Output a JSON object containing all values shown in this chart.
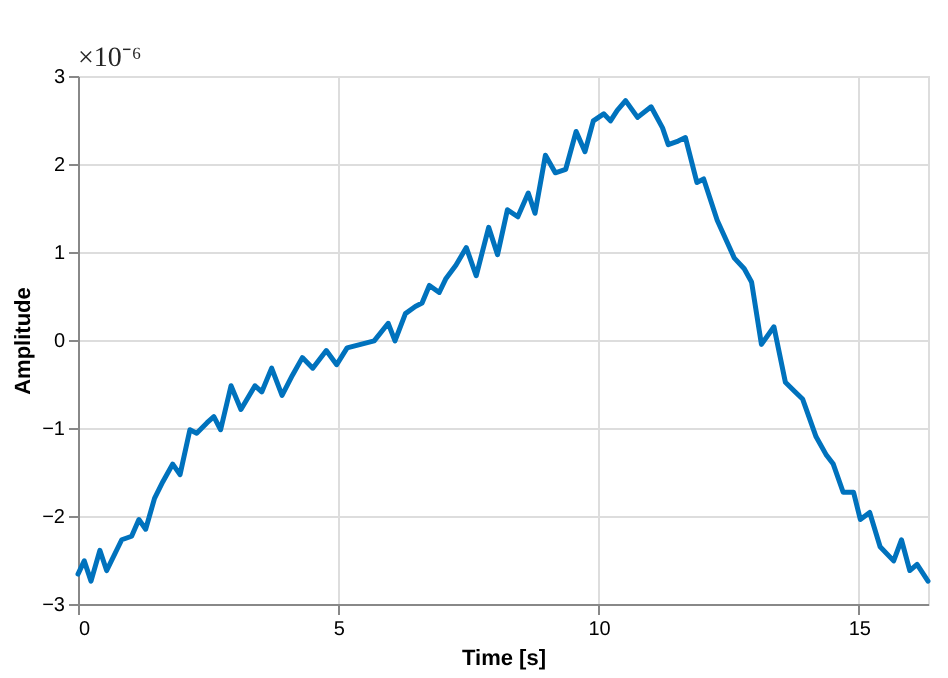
{
  "chart_data": {
    "type": "line",
    "xlabel": "Time [s]",
    "ylabel": "Amplitude",
    "annotations": [
      "×10⁻⁶"
    ],
    "xlim": [
      0,
      16.33
    ],
    "xticks": [
      0,
      5,
      10,
      15
    ],
    "ylim": [
      -3,
      3
    ],
    "yticks": [
      -3,
      -2,
      -1,
      0,
      1,
      2,
      3
    ],
    "grid": true,
    "line_style": "solid",
    "marker": "none",
    "series": [
      {
        "color": "#0072bd",
        "x": [
          0,
          0.12,
          0.25,
          0.42,
          0.55,
          0.84,
          1.03,
          1.17,
          1.3,
          1.47,
          1.63,
          1.82,
          1.96,
          2.15,
          2.28,
          2.48,
          2.61,
          2.74,
          2.94,
          3.13,
          3.4,
          3.53,
          3.72,
          3.92,
          4.12,
          4.31,
          4.51,
          4.77,
          4.97,
          5.17,
          5.43,
          5.69,
          5.96,
          6.09,
          6.29,
          6.48,
          6.61,
          6.75,
          6.94,
          7.07,
          7.26,
          7.46,
          7.65,
          7.89,
          8.06,
          8.25,
          8.45,
          8.65,
          8.78,
          8.98,
          9.17,
          9.37,
          9.57,
          9.74,
          9.9,
          10.1,
          10.23,
          10.36,
          10.52,
          10.75,
          11.01,
          11.23,
          11.34,
          11.53,
          11.67,
          11.89,
          12.02,
          12.28,
          12.61,
          12.8,
          12.94,
          13.13,
          13.37,
          13.59,
          13.78,
          13.92,
          14.18,
          14.37,
          14.51,
          14.7,
          14.9,
          15.03,
          15.21,
          15.41,
          15.67,
          15.82,
          15.98,
          16.12,
          16.33
        ],
        "values": [
          -2.66,
          -2.51,
          -2.74,
          -2.39,
          -2.62,
          -2.27,
          -2.23,
          -2.04,
          -2.15,
          -1.8,
          -1.61,
          -1.41,
          -1.53,
          -1.02,
          -1.06,
          -0.94,
          -0.87,
          -1.02,
          -0.52,
          -0.79,
          -0.52,
          -0.59,
          -0.32,
          -0.63,
          -0.4,
          -0.2,
          -0.32,
          -0.12,
          -0.28,
          -0.09,
          -0.05,
          -0.01,
          0.19,
          -0.01,
          0.3,
          0.38,
          0.42,
          0.62,
          0.54,
          0.7,
          0.85,
          1.05,
          0.73,
          1.28,
          0.97,
          1.48,
          1.4,
          1.67,
          1.44,
          2.1,
          1.9,
          1.94,
          2.37,
          2.14,
          2.49,
          2.57,
          2.49,
          2.61,
          2.72,
          2.53,
          2.65,
          2.41,
          2.22,
          2.26,
          2.3,
          1.79,
          1.83,
          1.36,
          0.93,
          0.81,
          0.66,
          -0.05,
          0.15,
          -0.48,
          -0.59,
          -0.67,
          -1.1,
          -1.3,
          -1.41,
          -1.73,
          -1.73,
          -2.04,
          -1.96,
          -2.35,
          -2.51,
          -2.27,
          -2.62,
          -2.55,
          -2.74
        ]
      }
    ]
  }
}
